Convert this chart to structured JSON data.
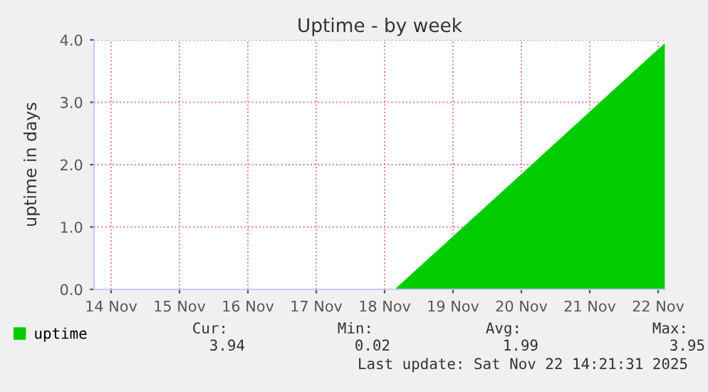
{
  "chart_data": {
    "type": "area",
    "title": "Uptime - by week",
    "ylabel": "uptime in days",
    "series": [
      {
        "name": "uptime",
        "color": "#00cc00",
        "x": [
          "2025-11-18T16:00",
          "2025-11-20T12:00",
          "2025-11-22T14:20"
        ],
        "values": [
          0.02,
          1.85,
          3.95
        ]
      }
    ],
    "xlim": [
      "2025-11-14T06:00",
      "2025-11-22T14:30"
    ],
    "xticks": [
      {
        "value": "2025-11-14T12:00",
        "label": "14 Nov"
      },
      {
        "value": "2025-11-15T12:00",
        "label": "15 Nov"
      },
      {
        "value": "2025-11-16T12:00",
        "label": "16 Nov"
      },
      {
        "value": "2025-11-17T12:00",
        "label": "17 Nov"
      },
      {
        "value": "2025-11-18T12:00",
        "label": "18 Nov"
      },
      {
        "value": "2025-11-19T12:00",
        "label": "19 Nov"
      },
      {
        "value": "2025-11-20T12:00",
        "label": "20 Nov"
      },
      {
        "value": "2025-11-21T12:00",
        "label": "21 Nov"
      },
      {
        "value": "2025-11-22T12:00",
        "label": "22 Nov"
      }
    ],
    "ylim": [
      0,
      4
    ],
    "yticks": [
      {
        "value": 0,
        "label": "0.0"
      },
      {
        "value": 1,
        "label": "1.0"
      },
      {
        "value": 2,
        "label": "2.0"
      },
      {
        "value": 3,
        "label": "3.0"
      },
      {
        "value": 4,
        "label": "4.0"
      }
    ],
    "grid": true,
    "legend": "bottom left",
    "annotations": [
      "Cur:",
      "Min:",
      "Avg:",
      "Max:",
      "3.94",
      "0.02",
      "1.99",
      "3.95",
      "Last update: Sat Nov 22 14:21:31 2025"
    ]
  }
}
